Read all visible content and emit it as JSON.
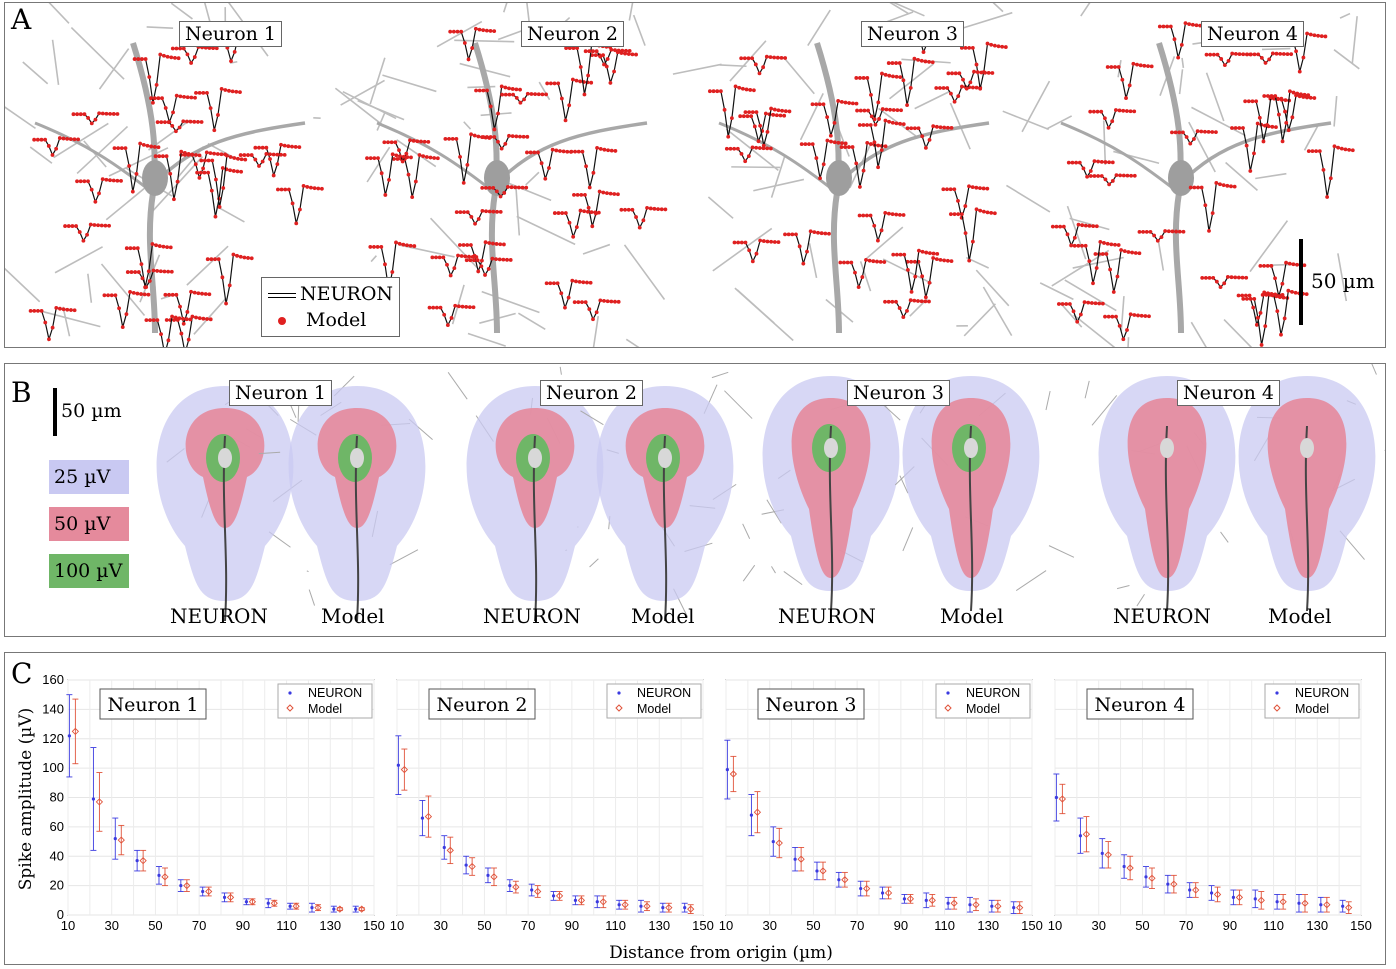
{
  "panel_a": {
    "letter": "A",
    "neurons": [
      "Neuron 1",
      "Neuron 2",
      "Neuron 3",
      "Neuron 4"
    ],
    "legend": {
      "line_label": "NEURON",
      "dot_label": "Model"
    },
    "scalebar": "50 µm"
  },
  "panel_b": {
    "letter": "B",
    "scalebar": "50 µm",
    "neurons": [
      "Neuron 1",
      "Neuron 2",
      "Neuron 3",
      "Neuron 4"
    ],
    "col_left": "NEURON",
    "col_right": "Model",
    "levels": [
      {
        "label": "25 µV",
        "color": "#c9c9f2"
      },
      {
        "label": "50 µV",
        "color": "#e58a9c"
      },
      {
        "label": "100 µV",
        "color": "#6fb667"
      }
    ]
  },
  "panel_c": {
    "letter": "C",
    "ylabel": "Spike amplitude (µV)",
    "xlabel": "Distance from origin (µm)",
    "legend": [
      "NEURON",
      "Model"
    ],
    "colors": {
      "neuron": "#3a3ae0",
      "model": "#e0533a"
    }
  },
  "chart_data": [
    {
      "type": "scatter",
      "title": "Neuron 1",
      "x": [
        12,
        23,
        33,
        43,
        53,
        63,
        73,
        83,
        93,
        103,
        113,
        123,
        133,
        143
      ],
      "series": [
        {
          "name": "NEURON",
          "values": [
            122,
            79,
            52,
            37,
            27,
            20,
            16,
            12,
            9,
            8,
            6,
            5,
            4,
            4
          ],
          "err": [
            28,
            35,
            14,
            7,
            6,
            4,
            3,
            3,
            2,
            3,
            2,
            3,
            2,
            2
          ]
        },
        {
          "name": "Model",
          "values": [
            125,
            77,
            51,
            37,
            26,
            20,
            16,
            12,
            9,
            8,
            6,
            5,
            4,
            4
          ],
          "err": [
            22,
            20,
            10,
            7,
            6,
            4,
            3,
            3,
            2,
            2,
            2,
            2,
            1,
            1
          ]
        }
      ],
      "xlim": [
        10,
        150
      ],
      "ylim": [
        0,
        160
      ],
      "xticks": [
        10,
        30,
        50,
        70,
        90,
        110,
        130,
        150
      ],
      "yticks": [
        0,
        20,
        40,
        60,
        80,
        100,
        120,
        140,
        160
      ],
      "legend_position": "top-right"
    },
    {
      "type": "scatter",
      "title": "Neuron 2",
      "x": [
        12,
        23,
        33,
        43,
        53,
        63,
        73,
        83,
        93,
        103,
        113,
        123,
        133,
        143
      ],
      "series": [
        {
          "name": "NEURON",
          "values": [
            102,
            66,
            46,
            34,
            27,
            20,
            17,
            13,
            10,
            9,
            7,
            6,
            5,
            5
          ],
          "err": [
            20,
            12,
            8,
            6,
            5,
            4,
            4,
            3,
            3,
            4,
            3,
            4,
            3,
            3
          ]
        },
        {
          "name": "Model",
          "values": [
            99,
            67,
            44,
            33,
            26,
            19,
            16,
            13,
            10,
            9,
            7,
            6,
            5,
            4
          ],
          "err": [
            14,
            14,
            9,
            6,
            6,
            4,
            4,
            3,
            3,
            4,
            3,
            3,
            3,
            3
          ]
        }
      ],
      "xlim": [
        10,
        150
      ],
      "ylim": [
        0,
        160
      ],
      "xticks": [
        10,
        30,
        50,
        70,
        90,
        110,
        130,
        150
      ],
      "yticks": [
        0,
        20,
        40,
        60,
        80,
        100,
        120,
        140,
        160
      ],
      "legend_position": "top-right"
    },
    {
      "type": "scatter",
      "title": "Neuron 3",
      "x": [
        12,
        23,
        33,
        43,
        53,
        63,
        73,
        83,
        93,
        103,
        113,
        123,
        133,
        143
      ],
      "series": [
        {
          "name": "NEURON",
          "values": [
            99,
            68,
            50,
            38,
            30,
            24,
            18,
            15,
            11,
            10,
            8,
            7,
            6,
            5
          ],
          "err": [
            20,
            14,
            10,
            8,
            6,
            5,
            5,
            4,
            3,
            5,
            4,
            5,
            4,
            4
          ]
        },
        {
          "name": "Model",
          "values": [
            96,
            70,
            49,
            38,
            30,
            24,
            18,
            15,
            11,
            10,
            8,
            7,
            6,
            5
          ],
          "err": [
            12,
            14,
            10,
            8,
            6,
            5,
            5,
            4,
            3,
            4,
            4,
            4,
            4,
            4
          ]
        }
      ],
      "xlim": [
        10,
        150
      ],
      "ylim": [
        0,
        160
      ],
      "xticks": [
        10,
        30,
        50,
        70,
        90,
        110,
        130,
        150
      ],
      "yticks": [
        0,
        20,
        40,
        60,
        80,
        100,
        120,
        140,
        160
      ],
      "legend_position": "top-right"
    },
    {
      "type": "scatter",
      "title": "Neuron 4",
      "x": [
        12,
        23,
        33,
        43,
        53,
        63,
        73,
        83,
        93,
        103,
        113,
        123,
        133,
        143
      ],
      "series": [
        {
          "name": "NEURON",
          "values": [
            80,
            54,
            42,
            33,
            26,
            21,
            17,
            15,
            12,
            11,
            9,
            8,
            7,
            6
          ],
          "err": [
            16,
            12,
            10,
            8,
            7,
            6,
            5,
            5,
            5,
            6,
            5,
            6,
            5,
            4
          ]
        },
        {
          "name": "Model",
          "values": [
            79,
            55,
            41,
            32,
            25,
            21,
            17,
            14,
            12,
            10,
            9,
            8,
            7,
            5
          ],
          "err": [
            10,
            12,
            9,
            8,
            7,
            6,
            5,
            5,
            5,
            6,
            5,
            6,
            5,
            4
          ]
        }
      ],
      "xlim": [
        10,
        150
      ],
      "ylim": [
        0,
        160
      ],
      "xticks": [
        10,
        30,
        50,
        70,
        90,
        110,
        130,
        150
      ],
      "yticks": [
        0,
        20,
        40,
        60,
        80,
        100,
        120,
        140,
        160
      ],
      "legend_position": "top-right"
    }
  ]
}
